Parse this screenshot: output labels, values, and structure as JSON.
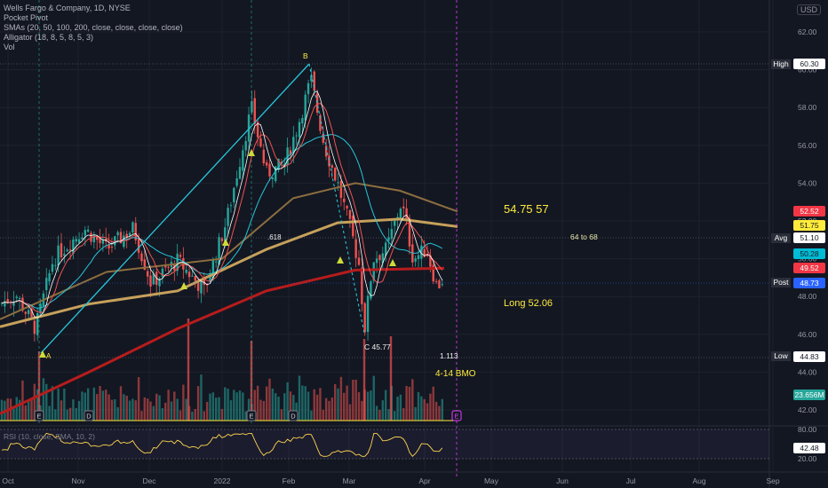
{
  "legend": {
    "title": "Wells Fargo & Company, 1D, NYSE",
    "indicators": [
      "Pocket Pivot",
      "SMAs (20, 50, 100, 200, close, close, close, close)",
      "Alligator (18, 8, 5, 8, 5, 3)",
      "Vol"
    ]
  },
  "currency": "USD",
  "axis": {
    "price_ticks": [
      "62.00",
      "60.00",
      "58.00",
      "56.00",
      "54.00",
      "52.00",
      "50.00",
      "48.00",
      "46.00",
      "44.00",
      "42.00"
    ],
    "time_ticks": [
      "Oct",
      "Nov",
      "Dec",
      "2022",
      "Feb",
      "Mar",
      "Apr",
      "May",
      "Jun",
      "Jul",
      "Aug",
      "Sep"
    ],
    "rsi_ticks": [
      "80.00",
      "20.00"
    ]
  },
  "rsi": {
    "label": "RSI (10, close, SMA, 10, 2)",
    "value": "42.48"
  },
  "price_badges": [
    {
      "tag": "High",
      "value": "60.30",
      "bg": "#ffffff",
      "fg": "#131722"
    },
    {
      "tag": "",
      "value": "52.52",
      "bg": "#f23645",
      "fg": "#ffffff"
    },
    {
      "tag": "",
      "value": "51.75",
      "bg": "#ffeb3b",
      "fg": "#131722"
    },
    {
      "tag": "Avg",
      "value": "51.10",
      "bg": "#ffffff",
      "fg": "#131722"
    },
    {
      "tag": "",
      "value": "50.28",
      "bg": "#00bcd4",
      "fg": "#131722"
    },
    {
      "tag": "",
      "value": "49.52",
      "bg": "#f23645",
      "fg": "#ffffff"
    },
    {
      "tag": "Post",
      "value": "48.73",
      "bg": "#2962ff",
      "fg": "#ffffff"
    },
    {
      "tag": "Low",
      "value": "44.83",
      "bg": "#ffffff",
      "fg": "#131722"
    },
    {
      "tag": "",
      "value": "23.656M",
      "bg": "#26a69a",
      "fg": "#ffffff"
    }
  ],
  "annotations": {
    "targets": "54.75   57",
    "range": "64 to 68",
    "long": "Long 52.06",
    "low_label": "C 45.77",
    "ratio": "1.113",
    "earnings": "4-14  BMO",
    "fib": ".618",
    "point_b": "B",
    "point_a": "A"
  },
  "events": [
    "E",
    "D",
    "E",
    "D",
    "E"
  ],
  "colors": {
    "bull": "#26a69a",
    "bear": "#ef5350",
    "bg": "#131722"
  }
}
